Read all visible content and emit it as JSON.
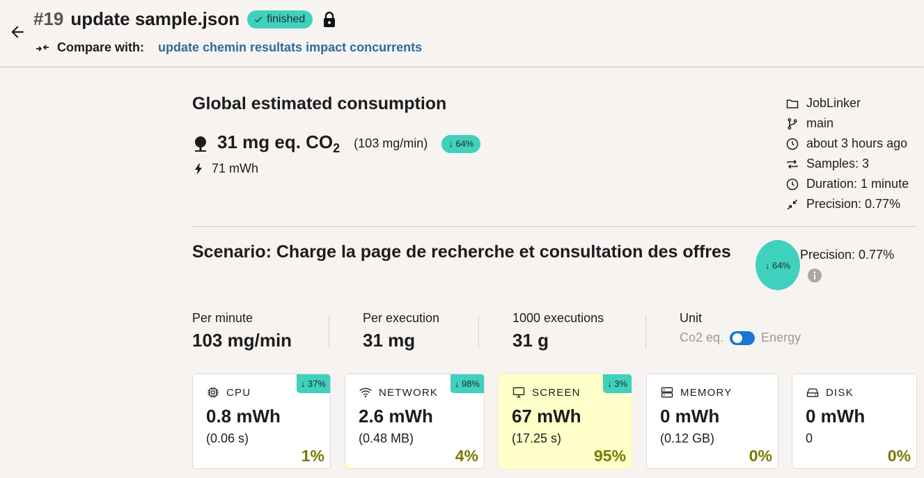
{
  "header": {
    "run_number": "#19",
    "title": "update sample.json",
    "status": "finished",
    "compare_label": "Compare with:",
    "compare_target": "update chemin resultats impact concurrents"
  },
  "global": {
    "title": "Global estimated consumption",
    "co2_value": "31 mg eq. CO",
    "co2_sub": "2",
    "co2_rate": "(103 mg/min)",
    "diff": "↓ 64%",
    "energy": "71 mWh"
  },
  "meta": [
    {
      "icon": "folder-icon",
      "text": "JobLinker"
    },
    {
      "icon": "branch-icon",
      "text": "main"
    },
    {
      "icon": "clock-icon",
      "text": "about 3 hours ago"
    },
    {
      "icon": "repeat-icon",
      "text": "Samples: 3"
    },
    {
      "icon": "clock-icon",
      "text": "Duration: 1 minute"
    },
    {
      "icon": "collapse-arrows-icon",
      "text": "Precision: 0.77%"
    }
  ],
  "scenario": {
    "title": "Scenario: Charge la page de recherche et consultation des offres",
    "diff": "↓ 64%",
    "precision": "Precision: 0.77%"
  },
  "stats": {
    "per_minute_label": "Per minute",
    "per_minute_value": "103 mg/min",
    "per_execution_label": "Per execution",
    "per_execution_value": "31 mg",
    "thousand_label": "1000 executions",
    "thousand_value": "31 g",
    "unit_label": "Unit",
    "unit_left": "Co2 eq.",
    "unit_right": "Energy"
  },
  "cards": [
    {
      "name": "CPU",
      "icon": "cpu-icon",
      "energy": "0.8 mWh",
      "sub": "(0.06 s)",
      "pct": "1%",
      "share": 0.01,
      "diff": "↓ 37%"
    },
    {
      "name": "NETWORK",
      "icon": "wifi-icon",
      "energy": "2.6 mWh",
      "sub": "(0.48 MB)",
      "pct": "4%",
      "share": 0.04,
      "diff": "↓ 98%"
    },
    {
      "name": "SCREEN",
      "icon": "monitor-icon",
      "energy": "67 mWh",
      "sub": "(17.25 s)",
      "pct": "95%",
      "share": 0.95,
      "diff": "↓ 3%"
    },
    {
      "name": "MEMORY",
      "icon": "memory-icon",
      "energy": "0 mWh",
      "sub": "(0.12 GB)",
      "pct": "0%",
      "share": 0.0,
      "diff": ""
    },
    {
      "name": "DISK",
      "icon": "disk-icon",
      "energy": "0 mWh",
      "sub": "0",
      "pct": "0%",
      "share": 0.0,
      "diff": ""
    }
  ],
  "colors": {
    "accent": "#3fd1bd",
    "link": "#2d6aa0",
    "toggle": "#1976d2",
    "highlight": "#ffffc9",
    "percent": "#7a7a00"
  }
}
